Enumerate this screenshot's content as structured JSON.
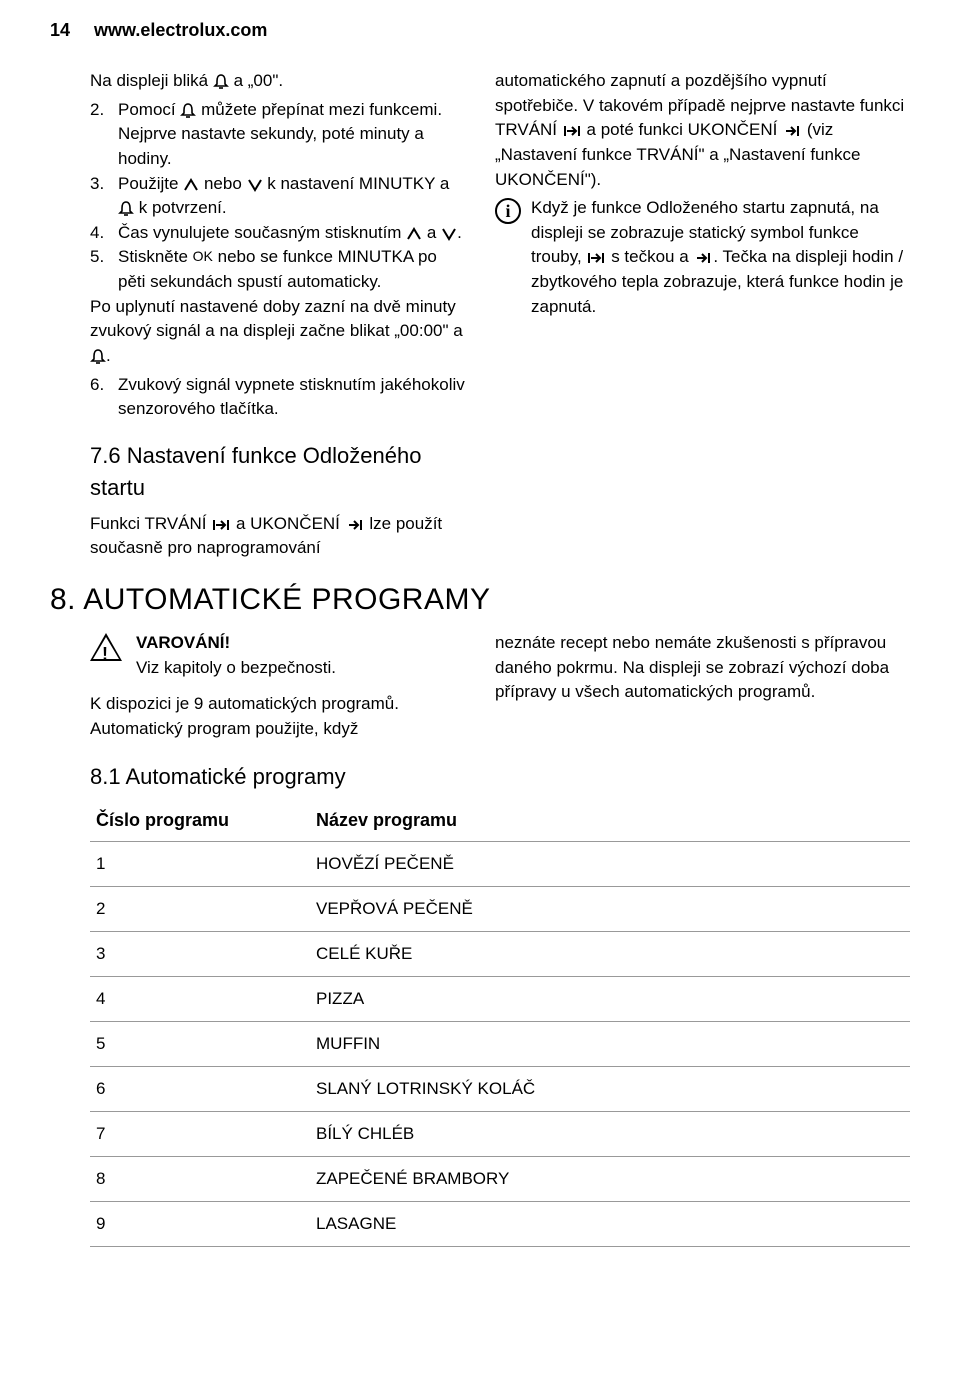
{
  "header": {
    "page_number": "14",
    "url": "www.electrolux.com"
  },
  "left": {
    "intro": "Na displeji bliká",
    "intro_rest": "a „00\".",
    "steps": [
      {
        "n": "2.",
        "pre": "Pomocí",
        "icon": "bell",
        "post": "můžete přepínat mezi funkcemi. Nejprve nastavte sekundy, poté minuty a hodiny."
      },
      {
        "n": "3.",
        "parts": [
          "Použijte",
          "up",
          "nebo",
          "down",
          "k nastavení MINUTKY a",
          "bell",
          "k potvrzení."
        ]
      },
      {
        "n": "4.",
        "parts": [
          "Čas vynulujete současným stisknutím",
          "up",
          "a",
          "down",
          "."
        ]
      },
      {
        "n": "5.",
        "parts": [
          "Stiskněte",
          "ok",
          "nebo se funkce MINUTKA po pěti sekundách spustí automaticky."
        ]
      }
    ],
    "continuation_pre": "Po uplynutí nastavené doby zazní na dvě minuty zvukový signál a na displeji začne blikat „00:00\" a",
    "step6": {
      "n": "6.",
      "text": "Zvukový signál vypnete stisknutím jakéhokoliv senzorového tlačítka."
    },
    "section_7_6": "7.6 Nastavení funkce Odloženého startu",
    "sec76_pre": "Funkci TRVÁNÍ",
    "sec76_mid": "a UKONČENÍ",
    "sec76_post": "lze použít současně pro naprogramování"
  },
  "right": {
    "para1_pre": "automatického zapnutí a pozdějšího vypnutí spotřebiče. V takovém případě nejprve nastavte funkci TRVÁNÍ",
    "para1_mid": "a poté funkci UKONČENÍ",
    "para1_post": "(viz „Nastavení funkce TRVÁNÍ\" a „Nastavení funkce UKONČENÍ\").",
    "info_pre": "Když je funkce Odloženého startu zapnutá, na displeji se zobrazuje statický symbol funkce trouby,",
    "info_mid": "s tečkou a",
    "info_post": ". Tečka na displeji hodin / zbytkového tepla zobrazuje, která funkce hodin je zapnutá."
  },
  "section8": {
    "heading": "8. AUTOMATICKÉ PROGRAMY",
    "warn_title": "VAROVÁNÍ!",
    "warn_body": "Viz kapitoly o bezpečnosti.",
    "left_text": "K dispozici je 9 automatických programů. Automatický program použijte, když",
    "right_text": "neznáte recept nebo nemáte zkušenosti s přípravou daného pokrmu. Na displeji se zobrazí výchozí doba přípravy u všech automatických programů.",
    "sub_title": "8.1 Automatické programy"
  },
  "table": {
    "col1": "Číslo programu",
    "col2": "Název programu",
    "rows": [
      {
        "n": "1",
        "name": "HOVĚZÍ PEČENĚ"
      },
      {
        "n": "2",
        "name": "VEPŘOVÁ PEČENĚ"
      },
      {
        "n": "3",
        "name": "CELÉ KUŘE"
      },
      {
        "n": "4",
        "name": "PIZZA"
      },
      {
        "n": "5",
        "name": "MUFFIN"
      },
      {
        "n": "6",
        "name": "SLANÝ LOTRINSKÝ KOLÁČ"
      },
      {
        "n": "7",
        "name": "BÍLÝ CHLÉB"
      },
      {
        "n": "8",
        "name": "ZAPEČENÉ BRAMBORY"
      },
      {
        "n": "9",
        "name": "LASAGNE"
      }
    ]
  }
}
